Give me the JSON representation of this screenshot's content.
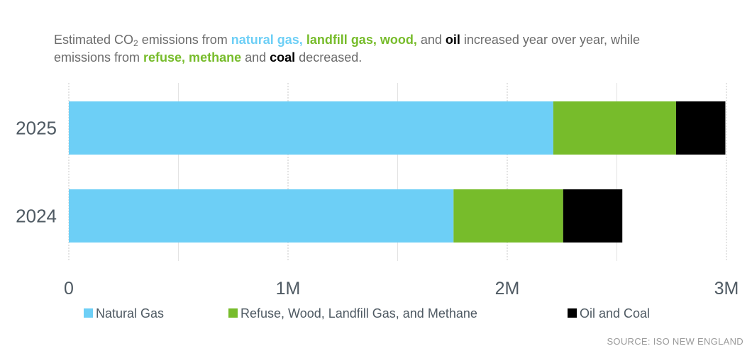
{
  "chart_data": {
    "type": "bar",
    "orientation": "horizontal",
    "stacked": true,
    "categories": [
      "2025",
      "2024"
    ],
    "series": [
      {
        "name": "Natural Gas",
        "values": [
          2210000,
          1755000
        ],
        "color": "#6dcff6"
      },
      {
        "name": "Refuse, Wood, Landfill Gas, and Methane",
        "values": [
          560000,
          500000
        ],
        "color": "#77bc2b"
      },
      {
        "name": "Oil and Coal",
        "values": [
          225000,
          270000
        ],
        "color": "#000000"
      }
    ],
    "xlim": [
      0,
      3000000
    ],
    "x_ticks": [
      {
        "value": 0,
        "label": "0"
      },
      {
        "value": 1000000,
        "label": "1M"
      },
      {
        "value": 2000000,
        "label": "2M"
      },
      {
        "value": 3000000,
        "label": "3M"
      }
    ],
    "x_minor_grid": [
      500000,
      1500000,
      2500000
    ],
    "legend_position": "bottom",
    "grid": true
  },
  "subtitle": {
    "line1": [
      {
        "text": "Estimated CO",
        "style": "normal"
      },
      {
        "text": "2",
        "style": "sub"
      },
      {
        "text": " emissions from ",
        "style": "normal"
      },
      {
        "text": "natural gas,",
        "style": "blue"
      },
      {
        "text": " ",
        "style": "normal"
      },
      {
        "text": "landfill gas, wood,",
        "style": "green"
      },
      {
        "text": " and ",
        "style": "normal"
      },
      {
        "text": "oil",
        "style": "black"
      },
      {
        "text": " increased year over year, while",
        "style": "normal"
      }
    ],
    "line2": [
      {
        "text": "emissions from ",
        "style": "normal"
      },
      {
        "text": "refuse, methane",
        "style": "green"
      },
      {
        "text": " and ",
        "style": "normal"
      },
      {
        "text": "coal",
        "style": "black"
      },
      {
        "text": " decreased.",
        "style": "normal"
      }
    ]
  },
  "source": "SOURCE: ISO NEW ENGLAND",
  "colors": {
    "blue": "#6dcff6",
    "green": "#77bc2b",
    "black": "#000000",
    "text": "#6b6b6b"
  }
}
